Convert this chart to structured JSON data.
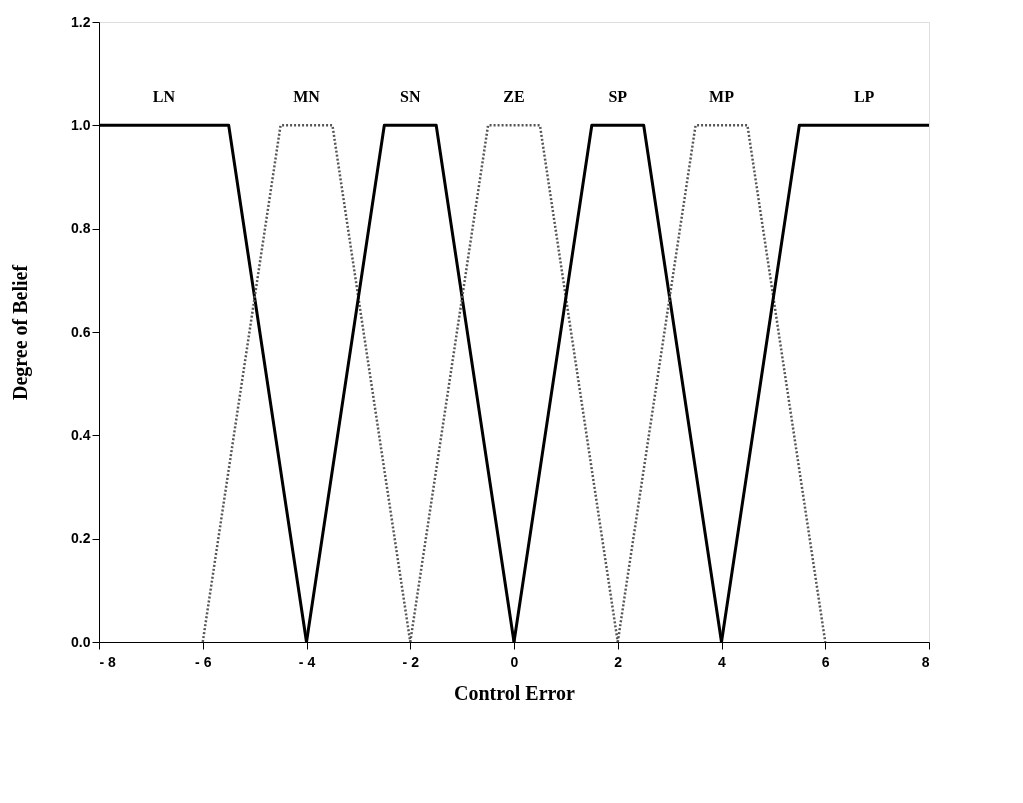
{
  "chart_data": {
    "type": "line",
    "xlabel": "Control Error",
    "ylabel": "Degree of Belief",
    "xlim": [
      -8,
      8
    ],
    "ylim": [
      0,
      1.2
    ],
    "xticks": [
      {
        "value": -8,
        "label": "- 8"
      },
      {
        "value": -6,
        "label": "- 6"
      },
      {
        "value": -4,
        "label": "- 4"
      },
      {
        "value": -2,
        "label": "- 2"
      },
      0,
      2,
      4,
      6,
      8
    ],
    "yticks": [
      {
        "value": 0,
        "label": "0.0"
      },
      {
        "value": 0.2,
        "label": "0.2"
      },
      {
        "value": 0.4,
        "label": "0.4"
      },
      {
        "value": 0.6,
        "label": "0.6"
      },
      {
        "value": 0.8,
        "label": "0.8"
      },
      {
        "value": 1.0,
        "label": "1.0"
      },
      {
        "value": 1.2,
        "label": "1.2"
      }
    ],
    "grid": false,
    "legend": false,
    "marker": "none",
    "series": [
      {
        "name": "LN",
        "color": "#000000",
        "line_style": "solid",
        "x": [
          -8,
          -5.5,
          -4
        ],
        "values": [
          1,
          1,
          0
        ]
      },
      {
        "name": "MN",
        "color": "#555555",
        "line_style": "dotted",
        "x": [
          -6,
          -4.5,
          -3.5,
          -2
        ],
        "values": [
          0,
          1,
          1,
          0
        ]
      },
      {
        "name": "SN",
        "color": "#000000",
        "line_style": "solid",
        "x": [
          -4,
          -2.5,
          -1.5,
          0
        ],
        "values": [
          0,
          1,
          1,
          0
        ]
      },
      {
        "name": "ZE",
        "color": "#555555",
        "line_style": "dotted",
        "x": [
          -2,
          -0.5,
          0.5,
          2
        ],
        "values": [
          0,
          1,
          1,
          0
        ]
      },
      {
        "name": "SP",
        "color": "#000000",
        "line_style": "solid",
        "x": [
          0,
          1.5,
          2.5,
          4
        ],
        "values": [
          0,
          1,
          1,
          0
        ]
      },
      {
        "name": "MP",
        "color": "#555555",
        "line_style": "dotted",
        "x": [
          2,
          3.5,
          4.5,
          6
        ],
        "values": [
          0,
          1,
          1,
          0
        ]
      },
      {
        "name": "LP",
        "color": "#000000",
        "line_style": "solid",
        "x": [
          4,
          5.5,
          8
        ],
        "values": [
          0,
          1,
          1
        ]
      }
    ]
  }
}
